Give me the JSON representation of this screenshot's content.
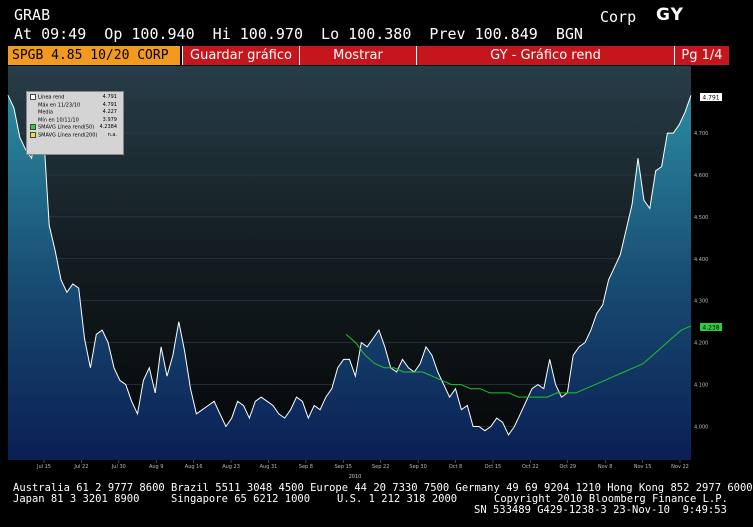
{
  "header": {
    "function": "GRAB",
    "quote_line": "At 09:49  Op 100.940  Hi 100.970  Lo 100.380  Prev 100.849  BGN",
    "yellow_key": "Corp",
    "command": "GY"
  },
  "toolbar": {
    "security": "SPGB 4.85 10/20 CORP",
    "save_label": "Guardar gráfico",
    "show_label": "Mostrar",
    "title": "GY - Gráfico rend",
    "page": "Pg 1/4"
  },
  "legend": {
    "rows": [
      {
        "label": "Línea rend",
        "value": "4.791",
        "swatch": "#ffffff"
      },
      {
        "label": "Máx en 11/23/10",
        "value": "4.791",
        "swatch": null
      },
      {
        "label": "Media",
        "value": "4.227",
        "swatch": null
      },
      {
        "label": "Mín en 10/11/10",
        "value": "3.979",
        "swatch": null
      },
      {
        "label": "SMAVG Línea rend(50)",
        "value": "4.2384",
        "swatch": "#2ecc40"
      },
      {
        "label": "SMAVG Línea rend(200)",
        "value": "n.a.",
        "swatch": "#f0e020"
      }
    ]
  },
  "colors": {
    "accent_orange": "#f29a1f",
    "accent_red": "#c4161c",
    "area_top": "#2a8aa0",
    "area_bottom": "#0a1f55",
    "ma_line": "#22c22c",
    "last_label": "#ffffff",
    "ma_label": "#2ecc40"
  },
  "chart_data": {
    "type": "area",
    "y_axis": {
      "ticks": [
        "4.000",
        "4.100",
        "4.200",
        "4.300",
        "4.400",
        "4.500",
        "4.600",
        "4.700"
      ],
      "ylim": [
        3.92,
        4.86
      ],
      "last_value_label": "4.791",
      "ma_value_label": "4.238"
    },
    "x_axis": {
      "ticks": [
        "Jul 15",
        "Jul 22",
        "Jul 30",
        "Aug 9",
        "Aug 16",
        "Aug 23",
        "Aug 31",
        "Sep 8",
        "Sep 15",
        "Sep 22",
        "Sep 30",
        "Oct 8",
        "Oct 15",
        "Oct 22",
        "Oct 29",
        "Nov 8",
        "Nov 15",
        "Nov 22"
      ],
      "year_label": "2010"
    },
    "series": [
      {
        "name": "Línea rend",
        "values": [
          4.79,
          4.76,
          4.69,
          4.66,
          4.64,
          4.73,
          4.71,
          4.48,
          4.42,
          4.35,
          4.32,
          4.34,
          4.33,
          4.21,
          4.14,
          4.22,
          4.23,
          4.2,
          4.14,
          4.11,
          4.1,
          4.06,
          4.03,
          4.11,
          4.14,
          4.08,
          4.19,
          4.12,
          4.17,
          4.25,
          4.18,
          4.09,
          4.03,
          4.04,
          4.05,
          4.06,
          4.03,
          4.0,
          4.02,
          4.06,
          4.05,
          4.02,
          4.06,
          4.07,
          4.06,
          4.05,
          4.03,
          4.02,
          4.04,
          4.07,
          4.06,
          4.02,
          4.05,
          4.04,
          4.07,
          4.09,
          4.14,
          4.16,
          4.16,
          4.12,
          4.2,
          4.19,
          4.21,
          4.23,
          4.19,
          4.14,
          4.13,
          4.16,
          4.14,
          4.13,
          4.15,
          4.19,
          4.17,
          4.13,
          4.1,
          4.07,
          4.09,
          4.04,
          4.05,
          4.0,
          4.0,
          3.99,
          4.0,
          4.02,
          4.01,
          3.98,
          4.0,
          4.03,
          4.06,
          4.09,
          4.1,
          4.09,
          4.16,
          4.1,
          4.07,
          4.08,
          4.17,
          4.19,
          4.2,
          4.23,
          4.27,
          4.29,
          4.35,
          4.38,
          4.41,
          4.47,
          4.53,
          4.64,
          4.54,
          4.52,
          4.61,
          4.62,
          4.7,
          4.7,
          4.72,
          4.75,
          4.79
        ]
      },
      {
        "name": "SMAVG Línea rend(50)",
        "values": [
          4.22,
          4.2,
          4.17,
          4.15,
          4.14,
          4.14,
          4.13,
          4.13,
          4.13,
          4.12,
          4.11,
          4.1,
          4.1,
          4.09,
          4.09,
          4.08,
          4.08,
          4.08,
          4.07,
          4.07,
          4.07,
          4.07,
          4.08,
          4.08,
          4.08,
          4.09,
          4.1,
          4.11,
          4.12,
          4.13,
          4.14,
          4.15,
          4.17,
          4.19,
          4.21,
          4.23,
          4.24
        ]
      }
    ]
  },
  "footer": {
    "line1": "Australia 61 2 9777 8600 Brazil 5511 3048 4500 Europe 44 20 7330 7500 Germany 49 69 9204 1210 Hong Kong 852 2977 6000",
    "line2_left": "Japan 81 3 3201 8900",
    "line2_mid1": "Singapore 65 6212 1000",
    "line2_mid2": "U.S. 1 212 318 2000",
    "line2_right": "Copyright 2010 Bloomberg Finance L.P.",
    "line3": "SN 533489 G429-1238-3 23-Nov-10  9:49:53"
  }
}
